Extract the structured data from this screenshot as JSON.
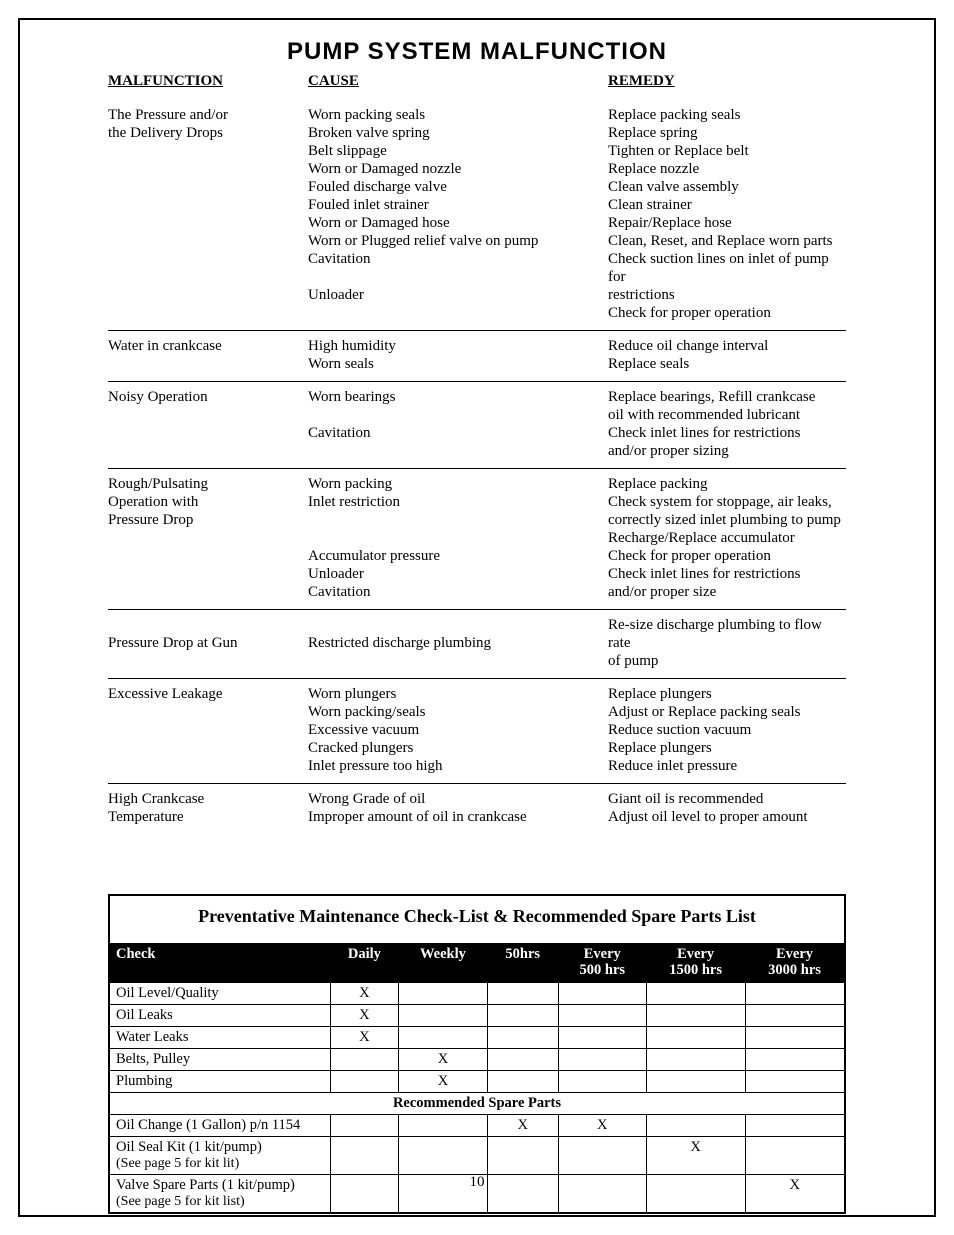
{
  "title": "PUMP  SYSTEM  MALFUNCTION",
  "headers": {
    "malfunction": "MALFUNCTION",
    "cause": "CAUSE",
    "remedy": "REMEDY"
  },
  "sections": [
    {
      "malfunction": [
        "The Pressure and/or",
        "the Delivery Drops"
      ],
      "cause": [
        "Worn packing seals",
        "Broken valve spring",
        "Belt slippage",
        "Worn or Damaged nozzle",
        "Fouled discharge valve",
        "Fouled inlet strainer",
        "Worn or Damaged hose",
        "Worn or Plugged relief valve on pump",
        "Cavitation",
        "",
        "Unloader"
      ],
      "remedy": [
        "Replace packing seals",
        "Replace spring",
        "Tighten or Replace belt",
        "Replace nozzle",
        "Clean valve assembly",
        "Clean strainer",
        "Repair/Replace hose",
        "Clean, Reset, and Replace worn parts",
        "Check suction lines on inlet of  pump for",
        "restrictions",
        "Check for proper operation"
      ]
    },
    {
      "malfunction": [
        "Water in crankcase"
      ],
      "cause": [
        "High humidity",
        "Worn  seals"
      ],
      "remedy": [
        "Reduce oil change interval",
        "Replace seals"
      ]
    },
    {
      "malfunction": [
        "Noisy Operation"
      ],
      "cause": [
        "Worn  bearings",
        "",
        "Cavitation"
      ],
      "remedy": [
        "Replace bearings, Refill crankcase",
        "oil with recommended lubricant",
        "Check inlet lines for restrictions",
        "and/or proper sizing"
      ]
    },
    {
      "malfunction": [
        "Rough/Pulsating",
        "Operation with",
        "Pressure Drop"
      ],
      "cause": [
        "Worn packing",
        "Inlet restriction",
        "",
        "",
        "Accumulator pressure",
        "Unloader",
        "Cavitation"
      ],
      "remedy": [
        "Replace packing",
        "Check system for stoppage, air leaks,",
        "correctly sized inlet plumbing to pump",
        "Recharge/Replace accumulator",
        "Check for proper operation",
        "Check inlet lines for restrictions",
        "and/or proper size"
      ]
    },
    {
      "malfunction": [
        "",
        "Pressure Drop at Gun"
      ],
      "cause": [
        "",
        "Restricted discharge plumbing"
      ],
      "remedy": [
        "Re-size discharge plumbing to  flow rate",
        "of pump"
      ]
    },
    {
      "malfunction": [
        "Excessive Leakage"
      ],
      "cause": [
        "Worn plungers",
        "Worn packing/seals",
        "Excessive vacuum",
        "Cracked plungers",
        "Inlet pressure too high"
      ],
      "remedy": [
        "Replace plungers",
        "Adjust or Replace packing seals",
        "Reduce suction vacuum",
        "Replace plungers",
        "Reduce inlet pressure"
      ]
    },
    {
      "malfunction": [
        "High Crankcase",
        "Temperature"
      ],
      "cause": [
        "Wrong Grade of oil",
        "Improper amount of oil in crankcase"
      ],
      "remedy": [
        "Giant oil is recommended",
        "Adjust oil level to proper amount"
      ]
    }
  ],
  "maint": {
    "title": "Preventative Maintenance Check-List & Recommended Spare Parts List",
    "columns": [
      "Check",
      "Daily",
      "Weekly",
      "50hrs",
      "Every 500  hrs",
      "Every 1500 hrs",
      "Every 3000 hrs"
    ],
    "rows": [
      {
        "label": "Oil Level/Quality",
        "marks": [
          "X",
          "",
          "",
          "",
          "",
          ""
        ]
      },
      {
        "label": "Oil Leaks",
        "marks": [
          "X",
          "",
          "",
          "",
          "",
          ""
        ]
      },
      {
        "label": "Water Leaks",
        "marks": [
          "X",
          "",
          "",
          "",
          "",
          ""
        ]
      },
      {
        "label": "Belts, Pulley",
        "marks": [
          "",
          "X",
          "",
          "",
          "",
          ""
        ]
      },
      {
        "label": "Plumbing",
        "marks": [
          "",
          "X",
          "",
          "",
          "",
          ""
        ]
      }
    ],
    "subheader": "Recommended Spare Parts",
    "rows2": [
      {
        "label": "Oil Change (1 Gallon) p/n 1154",
        "sub": "",
        "marks": [
          "",
          "",
          "X",
          "X",
          "",
          ""
        ]
      },
      {
        "label": "Oil Seal Kit (1 kit/pump)",
        "sub": "(See page 5 for kit lit)",
        "marks": [
          "",
          "",
          "",
          "",
          "X",
          ""
        ]
      },
      {
        "label": "Valve Spare Parts (1 kit/pump)",
        "sub": "(See page 5 for kit list)",
        "marks": [
          "",
          "",
          "",
          "",
          "",
          "X"
        ]
      }
    ]
  },
  "page_number": "10",
  "colors": {
    "bg": "#ffffff",
    "fg": "#000000",
    "header_bg": "#000000",
    "header_fg": "#ffffff"
  }
}
